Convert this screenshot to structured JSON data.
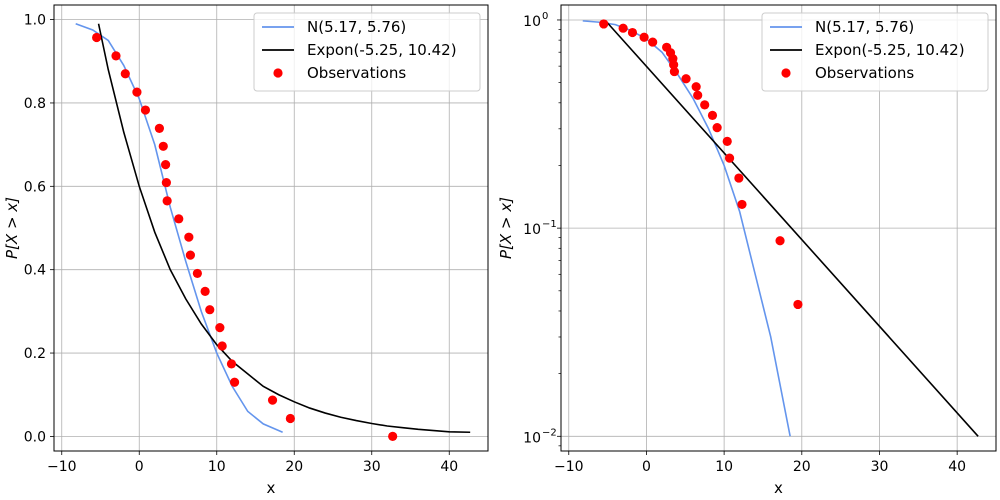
{
  "chart_data": [
    {
      "type": "line",
      "xlabel": "x",
      "ylabel": "P[X > x]",
      "xlim": [
        -11,
        45
      ],
      "ylim": [
        -0.035,
        1.035
      ],
      "yscale": "linear",
      "grid": true,
      "legend_position": "top-right",
      "xticks": [
        -10,
        0,
        10,
        20,
        30,
        40
      ],
      "xtick_labels": [
        "−10",
        "0",
        "10",
        "20",
        "30",
        "40"
      ],
      "yticks": [
        0.0,
        0.2,
        0.4,
        0.6,
        0.8,
        1.0
      ],
      "ytick_labels": [
        "0.0",
        "0.2",
        "0.4",
        "0.6",
        "0.8",
        "1.0"
      ],
      "series": [
        {
          "name": "N(5.17, 5.76)",
          "kind": "line",
          "color": "#6495ED",
          "x": [
            -8.2,
            -6.0,
            -4.0,
            -2.0,
            0.0,
            2.0,
            4.0,
            6.0,
            8.0,
            10.0,
            12.0,
            14.0,
            16.0,
            18.5
          ],
          "y": [
            0.99,
            0.975,
            0.95,
            0.89,
            0.81,
            0.7,
            0.55,
            0.42,
            0.3,
            0.2,
            0.12,
            0.06,
            0.03,
            0.01
          ]
        },
        {
          "name": "Expon(-5.25, 10.42)",
          "kind": "line",
          "color": "#000000",
          "x": [
            -5.25,
            -4,
            -2,
            0,
            2,
            4,
            6,
            8,
            10,
            12,
            14,
            16,
            18,
            20,
            22,
            24,
            26,
            28,
            30,
            32,
            34,
            36,
            38,
            40,
            42.7
          ],
          "y": [
            0.99,
            0.88,
            0.73,
            0.6,
            0.49,
            0.4,
            0.33,
            0.27,
            0.22,
            0.18,
            0.15,
            0.12,
            0.1,
            0.083,
            0.068,
            0.056,
            0.046,
            0.038,
            0.031,
            0.025,
            0.021,
            0.017,
            0.014,
            0.011,
            0.01
          ]
        },
        {
          "name": "Observations",
          "kind": "scatter",
          "color": "#FF0000",
          "x": [
            -5.5,
            -3.0,
            -1.8,
            -0.3,
            0.8,
            2.6,
            3.1,
            3.4,
            3.5,
            3.6,
            5.1,
            6.4,
            6.6,
            7.5,
            8.5,
            9.1,
            10.4,
            10.7,
            11.9,
            12.3,
            17.2,
            19.5,
            32.7
          ],
          "y": [
            0.957,
            0.913,
            0.87,
            0.826,
            0.783,
            0.739,
            0.696,
            0.652,
            0.609,
            0.565,
            0.522,
            0.478,
            0.435,
            0.391,
            0.348,
            0.304,
            0.261,
            0.217,
            0.174,
            0.13,
            0.087,
            0.043,
            0.0
          ]
        }
      ]
    },
    {
      "type": "line",
      "xlabel": "x",
      "ylabel": "P[X > x]",
      "xlim": [
        -11,
        45
      ],
      "ylim": [
        0.0085,
        1.18
      ],
      "yscale": "log",
      "grid": true,
      "legend_position": "top-right",
      "xticks": [
        -10,
        0,
        10,
        20,
        30,
        40
      ],
      "xtick_labels": [
        "−10",
        "0",
        "10",
        "20",
        "30",
        "40"
      ],
      "yticks": [
        0.01,
        0.1,
        1
      ],
      "ytick_labels": [
        "10",
        "10",
        "10"
      ],
      "ytick_exponents": [
        "−2",
        "−1",
        "0"
      ],
      "series": [
        {
          "name": "N(5.17, 5.76)",
          "kind": "line",
          "color": "#6495ED",
          "x": [
            -8.2,
            -6.0,
            -4.0,
            -2.0,
            0.0,
            2.0,
            4.0,
            6.0,
            8.0,
            10.0,
            12.0,
            14.0,
            16.0,
            18.5
          ],
          "y": [
            0.99,
            0.975,
            0.95,
            0.89,
            0.81,
            0.7,
            0.55,
            0.42,
            0.3,
            0.2,
            0.12,
            0.06,
            0.03,
            0.01
          ]
        },
        {
          "name": "Expon(-5.25, 10.42)",
          "kind": "line",
          "color": "#000000",
          "x": [
            -5.25,
            42.7
          ],
          "y": [
            0.99,
            0.01
          ]
        },
        {
          "name": "Observations",
          "kind": "scatter",
          "color": "#FF0000",
          "x": [
            -5.5,
            -3.0,
            -1.8,
            -0.3,
            0.8,
            2.6,
            3.1,
            3.4,
            3.5,
            3.6,
            5.1,
            6.4,
            6.6,
            7.5,
            8.5,
            9.1,
            10.4,
            10.7,
            11.9,
            12.3,
            17.2,
            19.5
          ],
          "y": [
            0.957,
            0.913,
            0.87,
            0.826,
            0.783,
            0.739,
            0.696,
            0.652,
            0.609,
            0.565,
            0.522,
            0.478,
            0.435,
            0.391,
            0.348,
            0.304,
            0.261,
            0.217,
            0.174,
            0.13,
            0.087,
            0.043
          ]
        }
      ]
    }
  ]
}
